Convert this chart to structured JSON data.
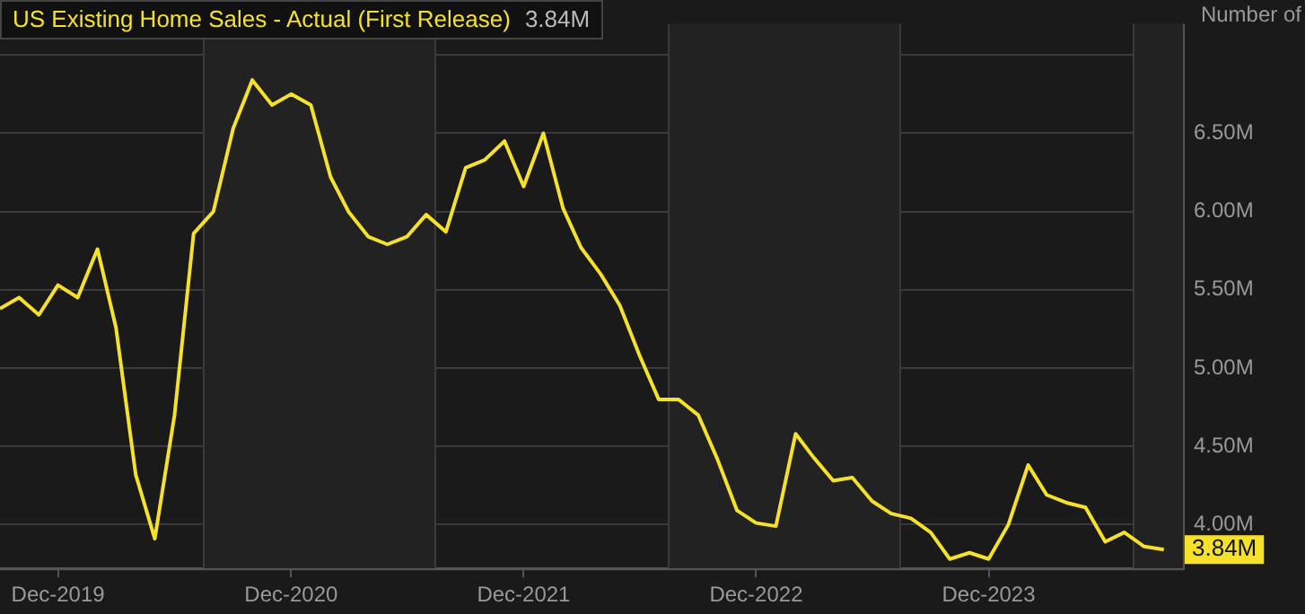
{
  "chart_data": {
    "type": "line",
    "title": "US Existing Home Sales - Actual (First Release)",
    "subtitle": "3.84M",
    "ylabel": "Number of",
    "x": [
      "2019-09",
      "2019-10",
      "2019-11",
      "2019-12",
      "2020-01",
      "2020-02",
      "2020-03",
      "2020-04",
      "2020-05",
      "2020-06",
      "2020-07",
      "2020-08",
      "2020-09",
      "2020-10",
      "2020-11",
      "2020-12",
      "2021-01",
      "2021-02",
      "2021-03",
      "2021-04",
      "2021-05",
      "2021-06",
      "2021-07",
      "2021-08",
      "2021-09",
      "2021-10",
      "2021-11",
      "2021-12",
      "2022-01",
      "2022-02",
      "2022-03",
      "2022-04",
      "2022-05",
      "2022-06",
      "2022-07",
      "2022-08",
      "2022-09",
      "2022-10",
      "2022-11",
      "2022-12",
      "2023-01",
      "2023-02",
      "2023-03",
      "2023-04",
      "2023-05",
      "2023-06",
      "2023-07",
      "2023-08",
      "2023-09",
      "2023-10",
      "2023-11",
      "2023-12",
      "2024-01",
      "2024-02",
      "2024-03",
      "2024-04",
      "2024-05",
      "2024-06",
      "2024-07",
      "2024-08",
      "2024-09"
    ],
    "series": [
      {
        "color": "#f5e12a",
        "values": [
          5.38,
          5.45,
          5.34,
          5.53,
          5.45,
          5.76,
          5.26,
          4.32,
          3.91,
          4.7,
          5.86,
          6.0,
          6.53,
          6.84,
          6.68,
          6.75,
          6.68,
          6.22,
          6.0,
          5.84,
          5.79,
          5.84,
          5.98,
          5.87,
          6.28,
          6.33,
          6.45,
          6.16,
          6.5,
          6.02,
          5.77,
          5.6,
          5.4,
          5.08,
          4.8,
          4.8,
          4.7,
          4.42,
          4.09,
          4.01,
          3.99,
          4.58,
          4.43,
          4.28,
          4.3,
          4.15,
          4.07,
          4.04,
          3.95,
          3.78,
          3.82,
          3.78,
          4.0,
          4.38,
          4.19,
          4.14,
          4.11,
          3.89,
          3.95,
          3.86,
          3.84
        ]
      }
    ],
    "xlim": [
      "2019-09",
      "2024-10"
    ],
    "xticks": [
      {
        "value": "2019-12",
        "label": "Dec-2019"
      },
      {
        "value": "2020-12",
        "label": "Dec-2020"
      },
      {
        "value": "2021-12",
        "label": "Dec-2021"
      },
      {
        "value": "2022-12",
        "label": "Dec-2022"
      },
      {
        "value": "2023-12",
        "label": "Dec-2023"
      }
    ],
    "ylim": [
      3.72,
      7.2
    ],
    "yticks": [
      {
        "value": 4.0,
        "label": "4.00M"
      },
      {
        "value": 4.5,
        "label": "4.50M"
      },
      {
        "value": 5.0,
        "label": "5.00M"
      },
      {
        "value": 5.5,
        "label": "5.50M"
      },
      {
        "value": 6.0,
        "label": "6.00M"
      },
      {
        "value": 6.5,
        "label": "6.50M"
      },
      {
        "value": 7.0,
        "label": null
      }
    ],
    "bands": [
      {
        "axis": "x",
        "from": "2020-07-15",
        "to": "2021-07-15",
        "color": "#222222"
      },
      {
        "axis": "x",
        "from": "2022-07-15",
        "to": "2023-07-15",
        "color": "#222222"
      },
      {
        "axis": "x",
        "from": "2024-07-15",
        "to": "2024-10",
        "color": "#222222"
      }
    ],
    "annotations": [
      {
        "text": "3.84M",
        "x": "2024-09",
        "y": 3.84
      }
    ],
    "grid": "y",
    "legend": false,
    "marker": "none",
    "line_style": "solid"
  }
}
